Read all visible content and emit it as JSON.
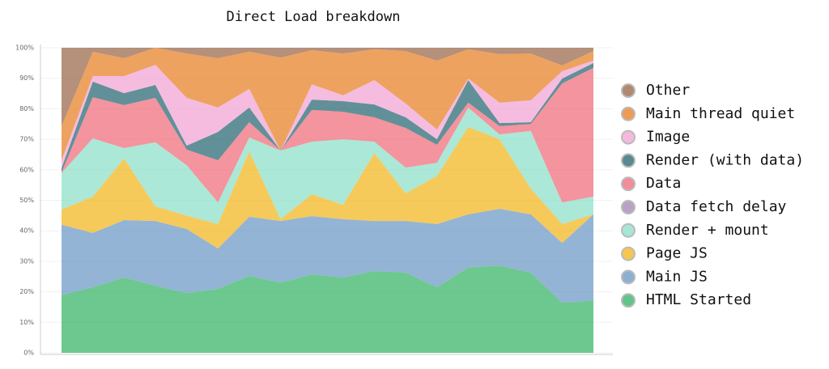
{
  "chart_data": {
    "type": "stacked_area",
    "title": "Direct Load breakdown",
    "categories": [
      null,
      null,
      null,
      null,
      null,
      null,
      null,
      null,
      null,
      null,
      null,
      null,
      null,
      null,
      null,
      null,
      null,
      null
    ],
    "ylim": [
      0,
      100
    ],
    "yticks": [
      {
        "value": 0,
        "label": "0%"
      },
      {
        "value": 10,
        "label": "10%"
      },
      {
        "value": 20,
        "label": "20%"
      },
      {
        "value": 30,
        "label": "30%"
      },
      {
        "value": 40,
        "label": "40%"
      },
      {
        "value": 50,
        "label": "50%"
      },
      {
        "value": 60,
        "label": "60%"
      },
      {
        "value": 70,
        "label": "70%"
      },
      {
        "value": 80,
        "label": "80%"
      },
      {
        "value": 90,
        "label": "90%"
      },
      {
        "value": 100,
        "label": "100%"
      }
    ],
    "grid": true,
    "legend": "right",
    "series": [
      {
        "name": "HTML Started",
        "color": "#3cb56b",
        "values": [
          19,
          21.5,
          24.7,
          22,
          19.6,
          21,
          25.2,
          23,
          25.7,
          24.7,
          26.8,
          26.3,
          21.5,
          28,
          28.6,
          26.3,
          16.4,
          17.2
        ]
      },
      {
        "name": "Main JS",
        "color": "#6f9bc7",
        "values": [
          23,
          17.8,
          18.8,
          21.2,
          21,
          13.2,
          19.4,
          20.2,
          19.1,
          19.1,
          16.4,
          16.9,
          20.7,
          17.4,
          18.6,
          19.1,
          19.6,
          28.2
        ]
      },
      {
        "name": "Page JS",
        "color": "#f2b824",
        "values": [
          5,
          11.9,
          20.2,
          4.8,
          4.4,
          8,
          21.4,
          0.6,
          7.2,
          4.7,
          22.3,
          9.1,
          15.8,
          28.6,
          22.8,
          8.4,
          6.2,
          0
        ]
      },
      {
        "name": "Render + mount",
        "color": "#8fe0c9",
        "values": [
          12,
          19.1,
          3.4,
          21,
          16.5,
          7.1,
          4.6,
          22.5,
          17.2,
          21.5,
          3.7,
          8.4,
          4.3,
          6.4,
          1.6,
          18.9,
          7.1,
          5.8
        ]
      },
      {
        "name": "Data fetch delay",
        "color": "#a98bb8",
        "values": [
          0,
          0,
          0,
          0,
          0,
          0,
          0,
          0,
          0,
          0,
          0,
          0,
          0,
          0,
          0,
          0,
          0,
          0
        ]
      },
      {
        "name": "Data",
        "color": "#f0707e",
        "values": [
          0.2,
          13.5,
          14.1,
          14.6,
          5.1,
          13.8,
          5,
          0,
          10.4,
          9,
          8,
          13,
          5.9,
          1.6,
          2.7,
          2.3,
          39,
          42.2
        ]
      },
      {
        "name": "Render (with data)",
        "color": "#2e6b75",
        "values": [
          1.3,
          5.1,
          3.9,
          4.2,
          1.3,
          9.3,
          4.8,
          0,
          3.4,
          3.5,
          4.2,
          3.5,
          1.8,
          7.4,
          1,
          0.6,
          1.6,
          1.6
        ]
      },
      {
        "name": "Image",
        "color": "#f2a6d6",
        "values": [
          2.6,
          1.8,
          5.6,
          6.6,
          15.7,
          8,
          6.1,
          0,
          5,
          1.9,
          8,
          4.5,
          3.2,
          0.5,
          6.7,
          7.2,
          2.4,
          0.8
        ]
      },
      {
        "name": "Main thread quiet",
        "color": "#e8832a",
        "values": [
          11.2,
          8,
          5.9,
          5.6,
          14.5,
          16.2,
          12.2,
          30.5,
          11.2,
          13.7,
          10.1,
          17.2,
          22.6,
          9.6,
          15.9,
          15.3,
          1.9,
          3.1
        ]
      },
      {
        "name": "Other",
        "color": "#9c6b4e",
        "values": [
          25.7,
          1.3,
          3.4,
          0,
          1.9,
          3.4,
          1.3,
          3.2,
          0.8,
          1.9,
          0.5,
          1.1,
          4.2,
          0.5,
          2.1,
          1.9,
          5.8,
          1.1
        ]
      }
    ]
  }
}
